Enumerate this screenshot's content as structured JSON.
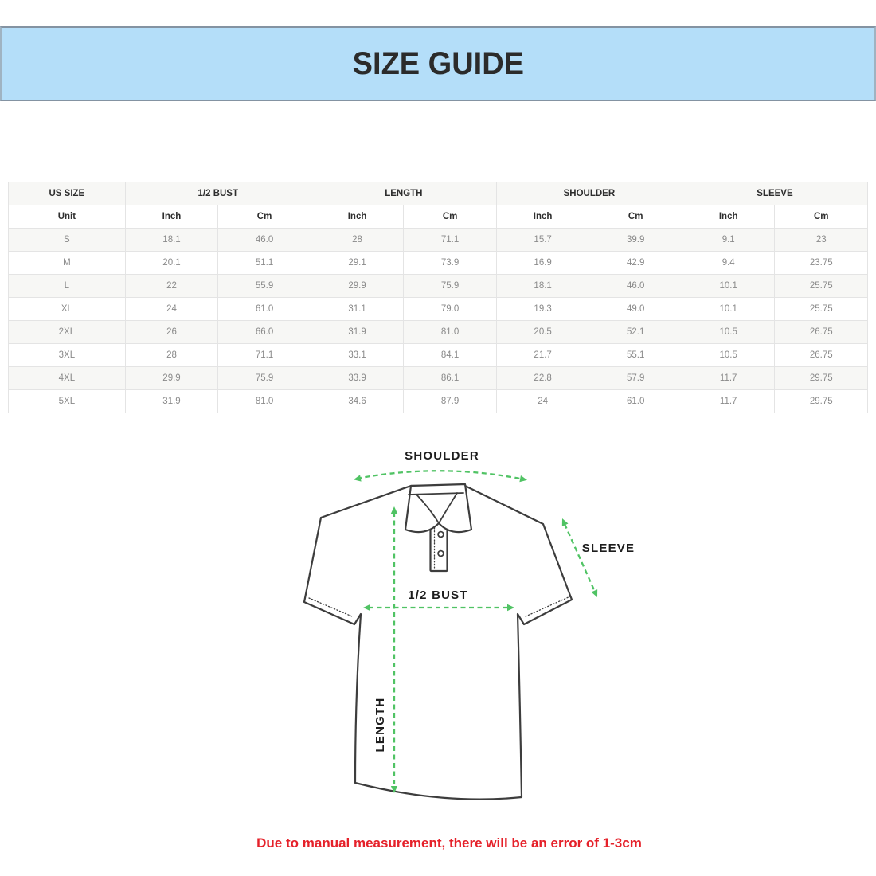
{
  "banner": {
    "title": "SIZE GUIDE"
  },
  "table": {
    "column_groups": [
      {
        "label": "US SIZE"
      },
      {
        "label": "1/2 BUST"
      },
      {
        "label": "LENGTH"
      },
      {
        "label": "SHOULDER"
      },
      {
        "label": "SLEEVE"
      }
    ],
    "unit_row": [
      "Unit",
      "Inch",
      "Cm",
      "Inch",
      "Cm",
      "Inch",
      "Cm",
      "Inch",
      "Cm"
    ],
    "rows": [
      [
        "S",
        "18.1",
        "46.0",
        "28",
        "71.1",
        "15.7",
        "39.9",
        "9.1",
        "23"
      ],
      [
        "M",
        "20.1",
        "51.1",
        "29.1",
        "73.9",
        "16.9",
        "42.9",
        "9.4",
        "23.75"
      ],
      [
        "L",
        "22",
        "55.9",
        "29.9",
        "75.9",
        "18.1",
        "46.0",
        "10.1",
        "25.75"
      ],
      [
        "XL",
        "24",
        "61.0",
        "31.1",
        "79.0",
        "19.3",
        "49.0",
        "10.1",
        "25.75"
      ],
      [
        "2XL",
        "26",
        "66.0",
        "31.9",
        "81.0",
        "20.5",
        "52.1",
        "10.5",
        "26.75"
      ],
      [
        "3XL",
        "28",
        "71.1",
        "33.1",
        "84.1",
        "21.7",
        "55.1",
        "10.5",
        "26.75"
      ],
      [
        "4XL",
        "29.9",
        "75.9",
        "33.9",
        "86.1",
        "22.8",
        "57.9",
        "11.7",
        "29.75"
      ],
      [
        "5XL",
        "31.9",
        "81.0",
        "34.6",
        "87.9",
        "24",
        "61.0",
        "11.7",
        "29.75"
      ]
    ]
  },
  "diagram": {
    "labels": {
      "shoulder": "SHOULDER",
      "sleeve": "SLEEVE",
      "bust": "1/2 BUST",
      "length": "LENGTH"
    },
    "arrow_color": "#50c364",
    "outline_color": "#3d3d3d"
  },
  "footer": {
    "note": "Due to manual measurement, there will be an error of 1-3cm",
    "color": "#e5212a"
  },
  "colors": {
    "banner_bg": "#b4def9",
    "banner_border": "#8493a2"
  }
}
